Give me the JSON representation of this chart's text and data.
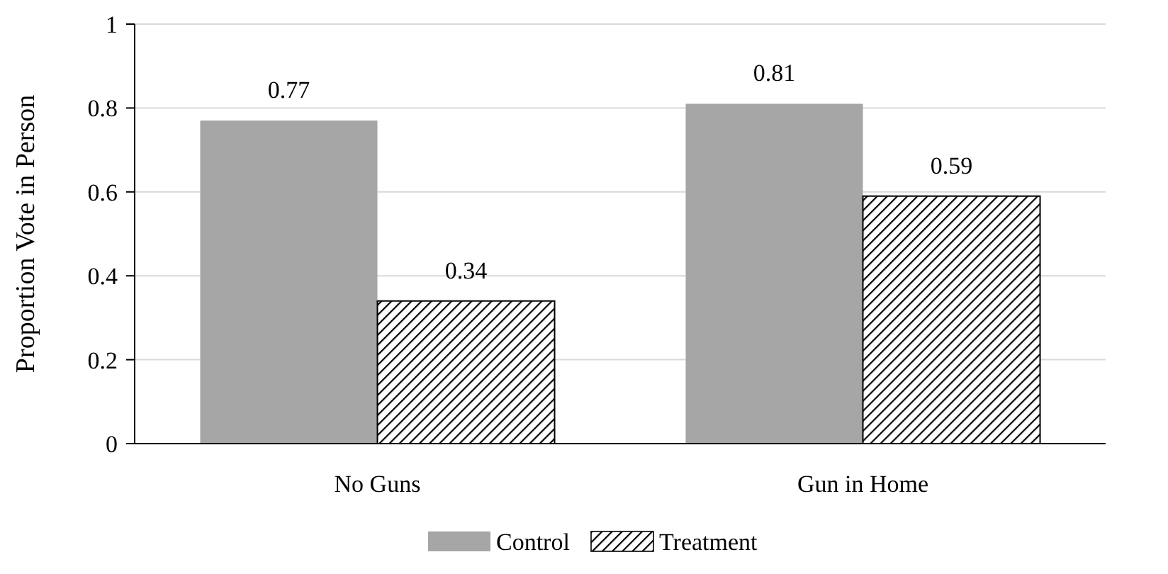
{
  "chart_data": {
    "type": "bar",
    "ylabel": "Proportion Vote in Person",
    "categories": [
      "No Guns",
      "Gun in Home"
    ],
    "series": [
      {
        "name": "Control",
        "color": "#a6a6a6",
        "values": [
          0.77,
          0.81
        ]
      },
      {
        "name": "Treatment",
        "color": "#000000",
        "values": [
          0.34,
          0.59
        ]
      }
    ],
    "ylim": [
      0,
      1
    ],
    "yticks": [
      0,
      0.2,
      0.4,
      0.6,
      0.8,
      1
    ],
    "grid": "y",
    "legend": "bottom",
    "data_labels": true
  }
}
